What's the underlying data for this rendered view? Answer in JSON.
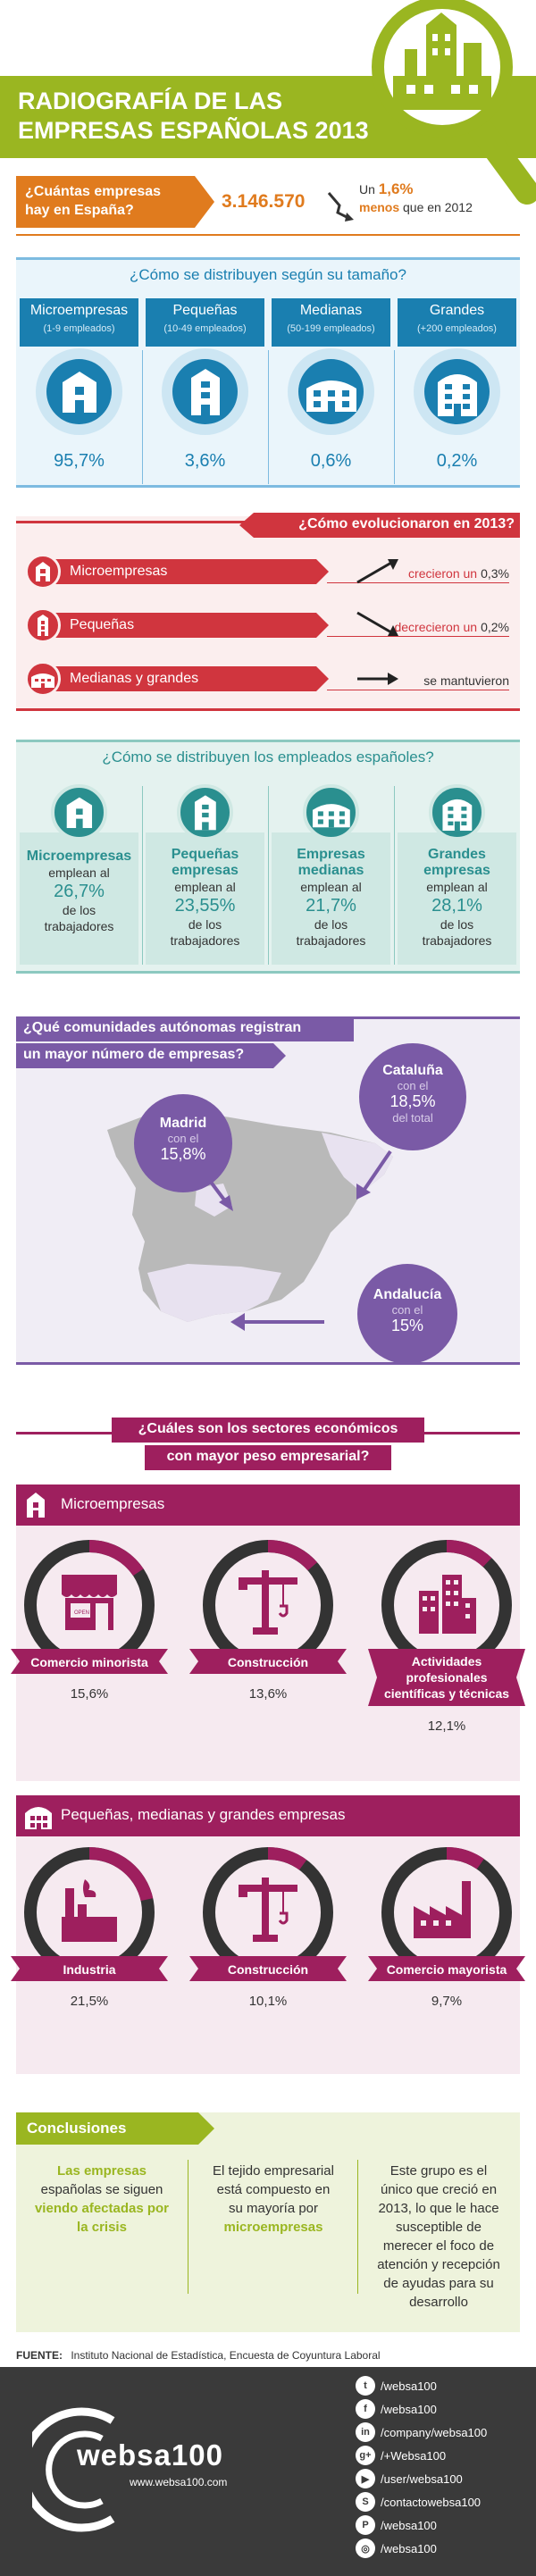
{
  "header": {
    "title_line1": "RADIOGRAFÍA DE LAS",
    "title_line2": "EMPRESAS ESPAÑOLAS 2013"
  },
  "count": {
    "question_line1": "¿Cuántas empresas",
    "question_line2": "hay en España?",
    "value": "3.146.570",
    "change_pre": "Un",
    "change_pct": "1,6%",
    "change_post_bold": "menos",
    "change_post": "que en 2012"
  },
  "size": {
    "title": "¿Cómo se distribuyen según su tamaño?",
    "items": [
      {
        "label": "Microempresas",
        "sub": "(1-9 empleados)",
        "value": "95,7%"
      },
      {
        "label": "Pequeñas",
        "sub": "(10-49 empleados)",
        "value": "3,6%"
      },
      {
        "label": "Medianas",
        "sub": "(50-199 empleados)",
        "value": "0,6%"
      },
      {
        "label": "Grandes",
        "sub": "(+200 empleados)",
        "value": "0,2%"
      }
    ]
  },
  "evolution": {
    "title": "¿Cómo evolucionaron en 2013?",
    "items": [
      {
        "label": "Microempresas",
        "pre": "crecieron un",
        "value": "0,3%"
      },
      {
        "label": "Pequeñas",
        "pre": "decrecieron un",
        "value": "0,2%"
      },
      {
        "label": "Medianas y grandes",
        "pre": "se mantuvieron",
        "value": ""
      }
    ]
  },
  "employees": {
    "title": "¿Cómo se distribuyen los empleados españoles?",
    "items": [
      {
        "name1": "Microempresas",
        "name2": "",
        "pre": "emplean al",
        "value": "26,7%",
        "post1": "de los",
        "post2": "trabajadores"
      },
      {
        "name1": "Pequeñas",
        "name2": "empresas",
        "pre": "emplean al",
        "value": "23,55%",
        "post1": "de los",
        "post2": "trabajadores"
      },
      {
        "name1": "Empresas",
        "name2": "medianas",
        "pre": "emplean al",
        "value": "21,7%",
        "post1": "de los",
        "post2": "trabajadores"
      },
      {
        "name1": "Grandes",
        "name2": "empresas",
        "pre": "emplean al",
        "value": "28,1%",
        "post1": "de los",
        "post2": "trabajadores"
      }
    ]
  },
  "regions": {
    "title_line1": "¿Qué comunidades autónomas registran",
    "title_line2": "un mayor número de empresas?",
    "madrid": {
      "name": "Madrid",
      "pre": "con el",
      "value": "15,8%",
      "post": ""
    },
    "cataluna": {
      "name": "Cataluña",
      "pre": "con el",
      "value": "18,5%",
      "post": "del total"
    },
    "andalucia": {
      "name": "Andalucía",
      "pre": "con el",
      "value": "15%",
      "post": ""
    }
  },
  "sectors": {
    "title_line1": "¿Cuáles son los sectores económicos",
    "title_line2": "con mayor peso empresarial?",
    "micro": {
      "heading": "Microempresas",
      "items": [
        {
          "name": "Comercio minorista",
          "value": "15,6%",
          "fraction": 0.156
        },
        {
          "name": "Construcción",
          "value": "13,6%",
          "fraction": 0.136
        },
        {
          "name": "Actividades profesionales científicas y técnicas",
          "value": "12,1%",
          "fraction": 0.121
        }
      ]
    },
    "pmg": {
      "heading": "Pequeñas, medianas y grandes empresas",
      "items": [
        {
          "name": "Industria",
          "value": "21,5%",
          "fraction": 0.215
        },
        {
          "name": "Construcción",
          "value": "10,1%",
          "fraction": 0.101
        },
        {
          "name": "Comercio mayorista",
          "value": "9,7%",
          "fraction": 0.097
        }
      ]
    }
  },
  "conclusions": {
    "title": "Conclusiones",
    "col1": [
      "Las empresas",
      "españolas se siguen",
      "viendo afectadas por",
      "la crisis"
    ],
    "col2": [
      "El tejido empresarial",
      "está compuesto en",
      "su mayoría por",
      "microempresas"
    ],
    "col3": [
      "Este grupo es el",
      "único que creció en",
      "2013, lo que le hace",
      "susceptible de",
      "merecer el foco de",
      "atención y recepción",
      "de ayudas para su",
      "desarrollo"
    ]
  },
  "source": {
    "label": "FUENTE:",
    "text": "Instituto Nacional de Estadística, Encuesta de Coyuntura Laboral"
  },
  "footer": {
    "brand": "websa100",
    "url": "www.websa100.com",
    "social": [
      {
        "icon": "twitter-icon",
        "text": "/websa100"
      },
      {
        "icon": "facebook-icon",
        "text": "/websa100"
      },
      {
        "icon": "linkedin-icon",
        "text": "/company/websa100"
      },
      {
        "icon": "googleplus-icon",
        "text": "/+Websa100"
      },
      {
        "icon": "youtube-icon",
        "text": "/user/websa100"
      },
      {
        "icon": "skype-icon",
        "text": "/contactowebsa100"
      },
      {
        "icon": "pinterest-icon",
        "text": "/websa100"
      },
      {
        "icon": "instagram-icon",
        "text": "/websa100"
      }
    ]
  },
  "colors": {
    "green": "#9ab621",
    "orange": "#e07b1e",
    "blue": "#1a7fb0",
    "red": "#d0353e",
    "teal": "#2a8f8f",
    "purple": "#7a5aa6",
    "magenta": "#9e1f5e",
    "dark": "#3a3a3a"
  }
}
